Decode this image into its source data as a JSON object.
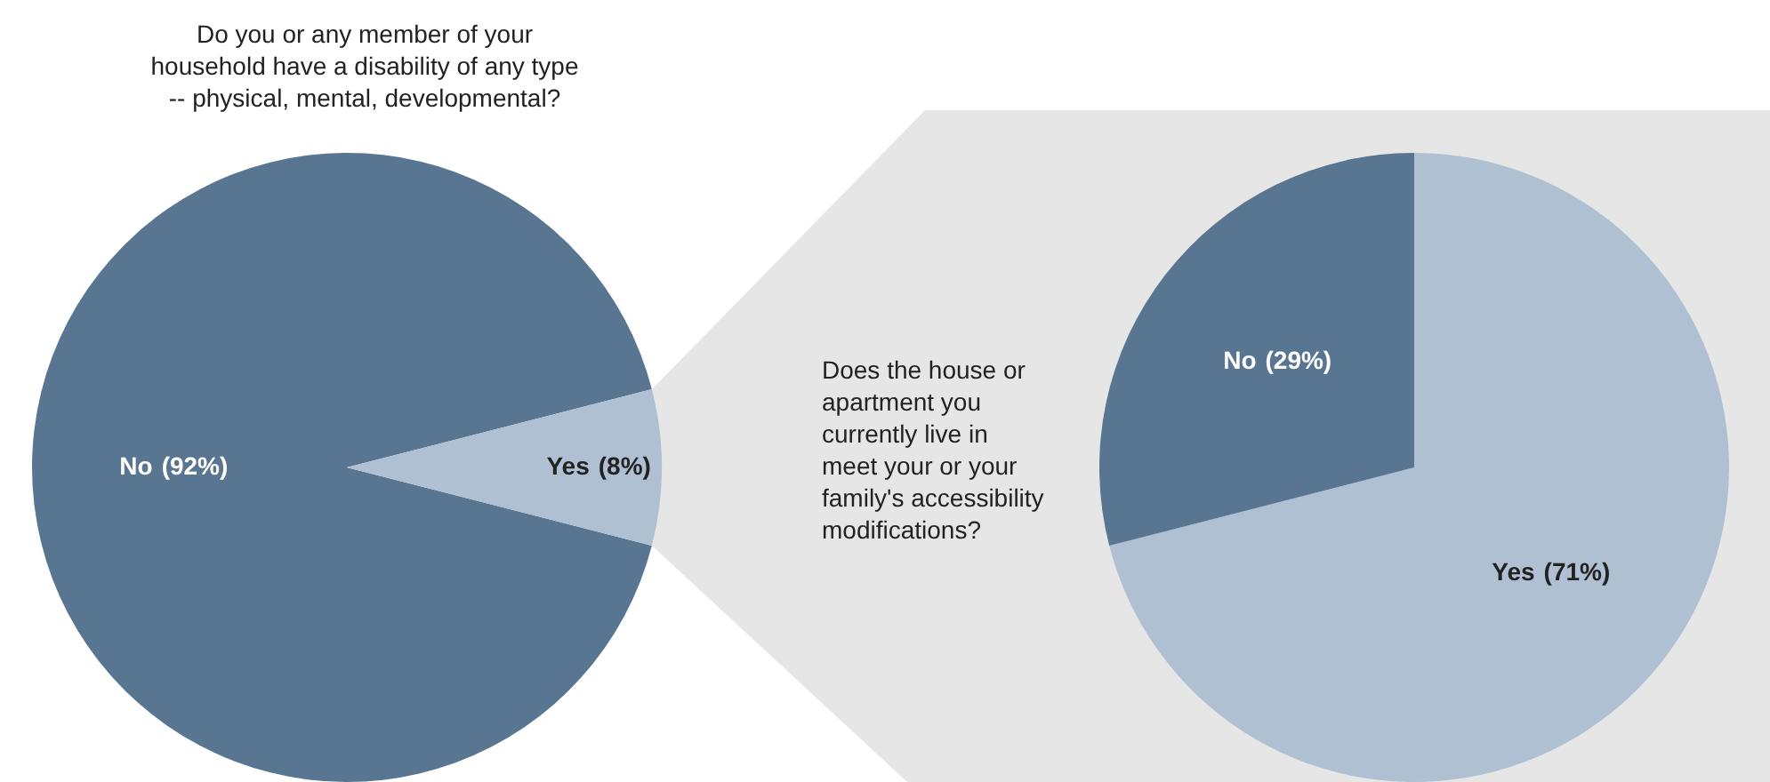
{
  "chart_data": [
    {
      "type": "pie",
      "title": "Do you or any member of your\nhousehold have a disability of any type\n-- physical, mental, developmental?",
      "categories": [
        "No",
        "Yes"
      ],
      "values": [
        92,
        8
      ],
      "colors": [
        "#587591",
        "#b0c0d3"
      ],
      "value_labels": [
        "(92%)",
        "(8%)"
      ]
    },
    {
      "type": "pie",
      "title": "Does the house or\napartment you\ncurrently live in\nmeet your or your\nfamily's accessibility\nmodifications?",
      "categories": [
        "Yes",
        "No"
      ],
      "values": [
        71,
        29
      ],
      "colors": [
        "#b0c0d3",
        "#587591"
      ],
      "value_labels": [
        "(71%)",
        "(29%)"
      ]
    }
  ]
}
